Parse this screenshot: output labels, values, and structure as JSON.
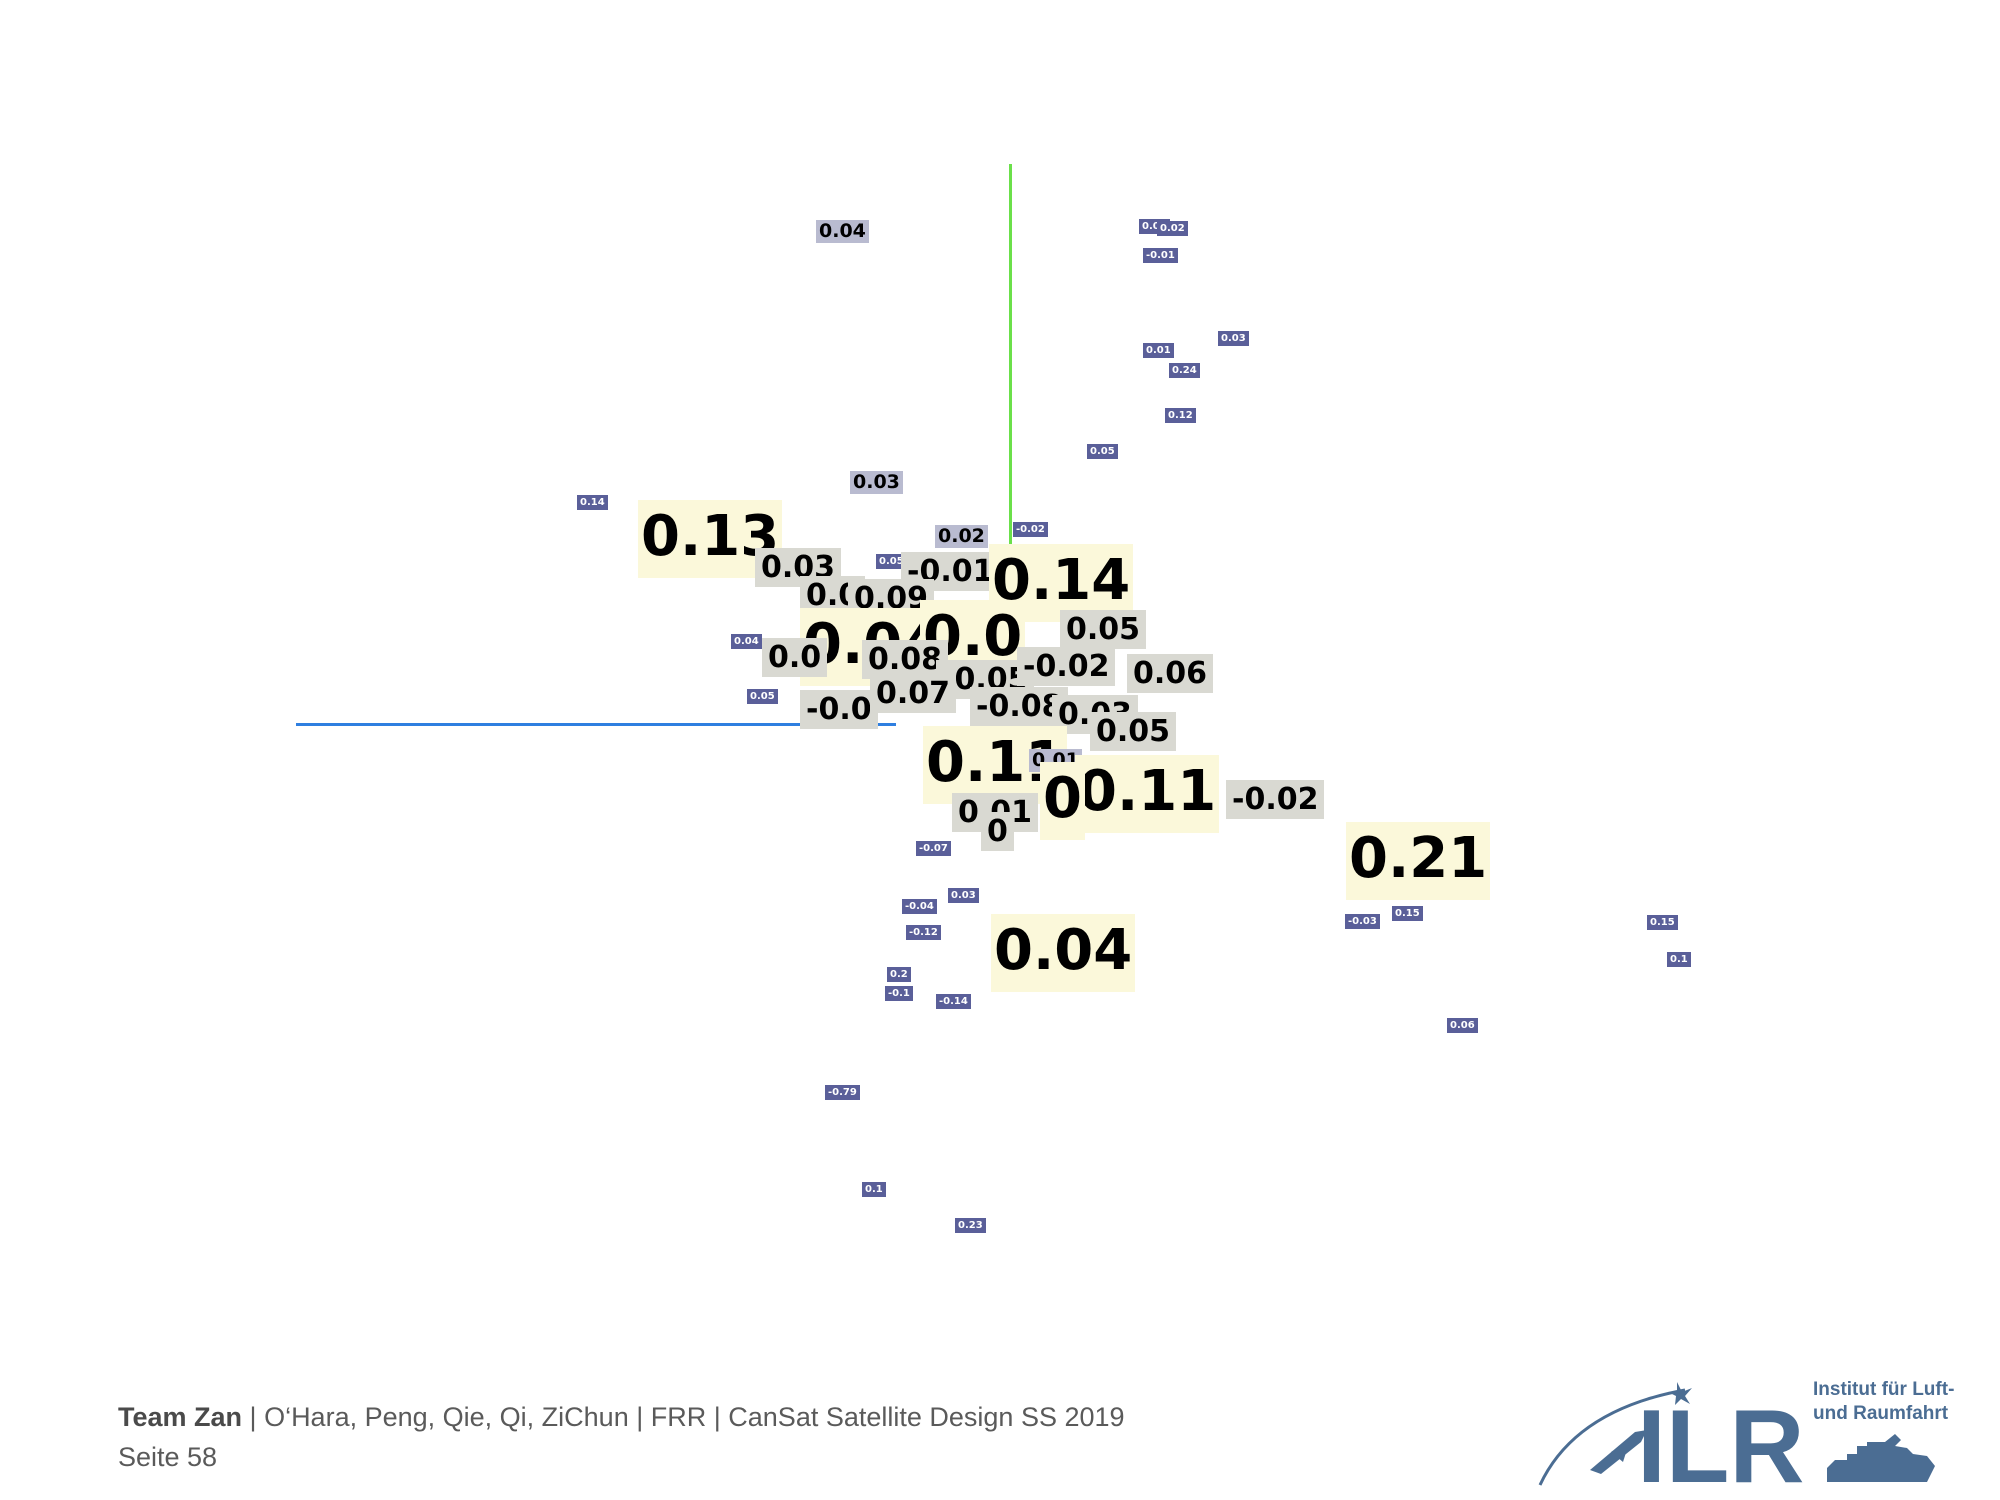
{
  "labels": [
    {
      "text": "0.04",
      "size": "sm"
    },
    {
      "text": "0.02",
      "size": "xs"
    },
    {
      "text": "0.02",
      "size": "xs"
    },
    {
      "text": "-0.01",
      "size": "xs"
    },
    {
      "text": "0.03",
      "size": "xs"
    },
    {
      "text": "0.01",
      "size": "xs"
    },
    {
      "text": "0.24",
      "size": "xs"
    },
    {
      "text": "0.05",
      "size": "xs"
    },
    {
      "text": "0.12",
      "size": "xs"
    },
    {
      "text": "0.03",
      "size": "sm"
    },
    {
      "text": "0.14",
      "size": "xs"
    },
    {
      "text": "0.02",
      "size": "sm"
    },
    {
      "text": "-0.02",
      "size": "xs"
    },
    {
      "text": "0.05",
      "size": "xs"
    },
    {
      "text": "0.13",
      "size": "lg"
    },
    {
      "text": "0.03",
      "size": "md"
    },
    {
      "text": "-0.01",
      "size": "md"
    },
    {
      "text": "0.14",
      "size": "lg"
    },
    {
      "text": "0.04",
      "size": "xs"
    },
    {
      "text": "0.05",
      "size": "xs"
    },
    {
      "text": "0.0",
      "size": "md"
    },
    {
      "text": "0.09",
      "size": "md"
    },
    {
      "text": "0.04",
      "size": "lg"
    },
    {
      "text": "0.0",
      "size": "lg"
    },
    {
      "text": "0.05",
      "size": "md"
    },
    {
      "text": "0.0",
      "size": "md"
    },
    {
      "text": "0.08",
      "size": "md"
    },
    {
      "text": "-0.05",
      "size": "md"
    },
    {
      "text": "-0.02",
      "size": "md"
    },
    {
      "text": "0.06",
      "size": "md"
    },
    {
      "text": "-0.0",
      "size": "md"
    },
    {
      "text": "0.07",
      "size": "md"
    },
    {
      "text": "-0.08",
      "size": "md"
    },
    {
      "text": "0.03",
      "size": "md"
    },
    {
      "text": "0.05",
      "size": "md"
    },
    {
      "text": "0.11",
      "size": "lg"
    },
    {
      "text": "0.01",
      "size": "sm"
    },
    {
      "text": "0.11",
      "size": "lg"
    },
    {
      "text": "0",
      "size": "lg"
    },
    {
      "text": "-0.02",
      "size": "md"
    },
    {
      "text": "0.01",
      "size": "md"
    },
    {
      "text": "0",
      "size": "md"
    },
    {
      "text": "-0.07",
      "size": "xs"
    },
    {
      "text": "0.21",
      "size": "lg"
    },
    {
      "text": "0.03",
      "size": "xs"
    },
    {
      "text": "-0.04",
      "size": "xs"
    },
    {
      "text": "-0.12",
      "size": "xs"
    },
    {
      "text": "0.04",
      "size": "lg"
    },
    {
      "text": "-0.03",
      "size": "xs"
    },
    {
      "text": "0.15",
      "size": "xs"
    },
    {
      "text": "0.15",
      "size": "xs"
    },
    {
      "text": "0.1",
      "size": "xs"
    },
    {
      "text": "0.2",
      "size": "xs"
    },
    {
      "text": "-0.1",
      "size": "xs"
    },
    {
      "text": "-0.14",
      "size": "xs"
    },
    {
      "text": "0.06",
      "size": "xs"
    },
    {
      "text": "-0.79",
      "size": "xs"
    },
    {
      "text": "0.1",
      "size": "xs"
    },
    {
      "text": "0.23",
      "size": "xs"
    }
  ],
  "footer": {
    "team": "Team Zan",
    "sep1": " | ",
    "members": "O‘Hara, Peng, Qie, Qi, ZiChun",
    "sep2": " | ",
    "dept": "FRR",
    "sep3": " | ",
    "course": "CanSat Satellite Design SS 2019",
    "page": "Seite 58"
  },
  "logo": {
    "acronym": "ILR",
    "institute_line1": "Institut für Luft-",
    "institute_line2": "und Raumfahrt",
    "accent_color": "#4b6d93"
  },
  "axis_colors": {
    "x": "#2f7fe0",
    "y": "#6be04a",
    "z": "#f08a2a"
  }
}
